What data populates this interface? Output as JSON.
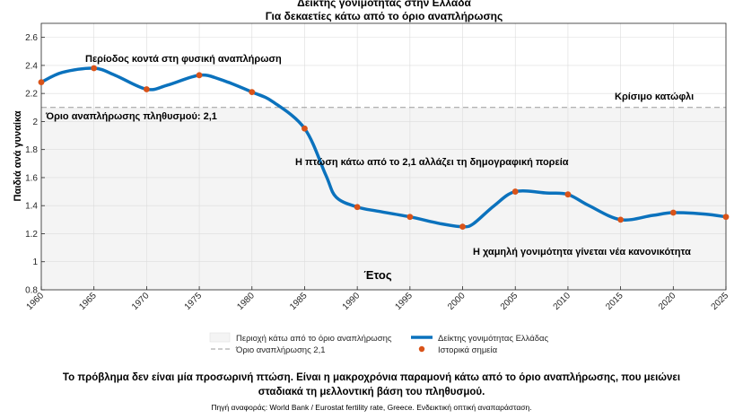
{
  "chart_data": {
    "type": "line",
    "title": "Δείκτης γονιμότητας στην Ελλάδα",
    "subtitle": "Για δεκαετίες κάτω από το όριο αναπλήρωσης",
    "xlabel": "Έτος",
    "ylabel": "Παιδιά ανά γυναίκα",
    "xlim": [
      1960,
      2025
    ],
    "ylim": [
      0.8,
      2.7
    ],
    "x_ticks": [
      "1960",
      "1965",
      "1970",
      "1975",
      "1980",
      "1985",
      "1990",
      "1995",
      "2000",
      "2005",
      "2010",
      "2015",
      "2020",
      "2025"
    ],
    "y_ticks": [
      "0.8",
      "1",
      "1.2",
      "1.4",
      "1.6",
      "1.8",
      "2",
      "2.2",
      "2.4",
      "2.6"
    ],
    "grid": true,
    "reference_line": {
      "value": 2.1
    },
    "shaded_region": {
      "from": 0.8,
      "to": 2.1
    },
    "series": [
      {
        "name": "Δείκτης γονιμότητας Ελλάδας",
        "color": "#0b72bd",
        "x": [
          1960,
          1962,
          1965,
          1967,
          1970,
          1972,
          1975,
          1977,
          1980,
          1982,
          1985,
          1987,
          1988,
          1990,
          1992,
          1995,
          1998,
          2000,
          2001,
          2003,
          2005,
          2008,
          2010,
          2012,
          2015,
          2018,
          2020,
          2023,
          2025
        ],
        "y": [
          2.28,
          2.35,
          2.38,
          2.33,
          2.23,
          2.26,
          2.33,
          2.3,
          2.21,
          2.14,
          1.95,
          1.62,
          1.46,
          1.39,
          1.36,
          1.32,
          1.27,
          1.25,
          1.27,
          1.4,
          1.5,
          1.49,
          1.48,
          1.4,
          1.3,
          1.33,
          1.35,
          1.34,
          1.32
        ]
      },
      {
        "name": "Ιστορικά σημεία",
        "color": "#d95319",
        "x": [
          1960,
          1965,
          1970,
          1975,
          1980,
          1985,
          1990,
          1995,
          2000,
          2005,
          2010,
          2015,
          2020,
          2025
        ],
        "y": [
          2.28,
          2.38,
          2.23,
          2.33,
          2.21,
          1.95,
          1.39,
          1.32,
          1.25,
          1.5,
          1.48,
          1.3,
          1.35,
          1.32
        ]
      }
    ],
    "annotations": [
      {
        "text": "Περίοδος κοντά στη φυσική αναπλήρωση",
        "x": 1970,
        "y": 2.45
      },
      {
        "text": "Κρίσιμο κατώφλι",
        "x": 2018,
        "y": 2.16
      },
      {
        "text": "Όριο αναπλήρωσης πληθυσμού: 2,1",
        "x": 1960,
        "y": 2.04
      },
      {
        "text": "Η πτώση κάτω από το 2,1 αλλάζει τη δημογραφική πορεία",
        "x": 2008,
        "y": 1.7
      },
      {
        "text": "Η χαμηλή γονιμότητα γίνεται νέα κανονικότητα",
        "x": 2014,
        "y": 1.07
      }
    ],
    "legend": {
      "placement": "bottom-center",
      "entries": [
        "Περιοχή κάτω από το όριο αναπλήρωσης",
        "Δείκτης γονιμότητας Ελλάδας",
        "Όριο αναπλήρωσης 2,1",
        "Ιστορικά σημεία"
      ]
    }
  },
  "conclusion": [
    "Το πρόβλημα δεν είναι μία προσωρινή πτώση. Είναι η μακροχρόνια παραμονή κάτω από το όριο αναπλήρωσης, που μειώνει",
    "σταδιακά τη μελλοντική βάση του πληθυσμού."
  ],
  "source": "Πηγή αναφοράς: World Bank / Eurostat fertility rate, Greece. Ενδεικτική οπτική αναπαράσταση.",
  "colors": {
    "line": "#0b72bd",
    "points": "#d95319",
    "shade": "#f4f4f4",
    "threshold": "#9a9a9a"
  }
}
